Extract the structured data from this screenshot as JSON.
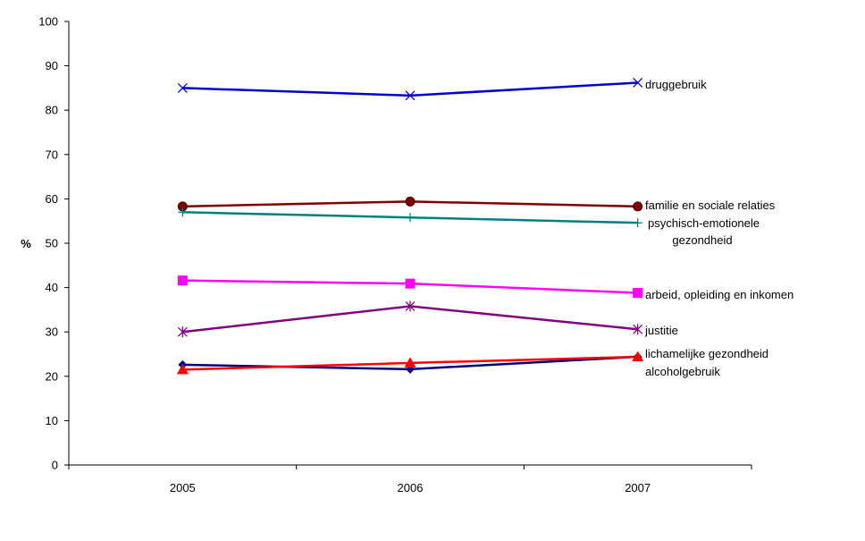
{
  "chart_data": {
    "type": "line",
    "title": "",
    "xlabel": "",
    "ylabel": "%",
    "ylim": [
      0,
      100
    ],
    "yticks": [
      "0",
      "10",
      "20",
      "30",
      "40",
      "50",
      "60",
      "70",
      "80",
      "90",
      "100"
    ],
    "x": [
      "2005",
      "2006",
      "2007"
    ],
    "grid": false,
    "legend": "inline-right",
    "series": [
      {
        "name": "druggebruik",
        "values": [
          85,
          83.3,
          86.2
        ],
        "color": "#0000cc",
        "marker": "x"
      },
      {
        "name": "familie en sociale relaties",
        "values": [
          58.3,
          59.4,
          58.3
        ],
        "color": "#800000",
        "marker": "circle"
      },
      {
        "name": "psychisch-emotionele gezondheid",
        "label_lines": [
          "psychisch-emotionele",
          "gezondheid"
        ],
        "values": [
          57,
          55.8,
          54.6
        ],
        "color": "#008080",
        "marker": "plus"
      },
      {
        "name": "arbeid, opleiding en inkomen",
        "values": [
          41.6,
          40.9,
          38.8
        ],
        "color": "#ff00ff",
        "marker": "square"
      },
      {
        "name": "justitie",
        "values": [
          30,
          35.8,
          30.6
        ],
        "color": "#800080",
        "marker": "star"
      },
      {
        "name": "lichamelijke gezondheid",
        "values": [
          22.6,
          21.6,
          24.4
        ],
        "color": "#000080",
        "marker": "diamond"
      },
      {
        "name": "alcoholgebruik",
        "values": [
          21.5,
          23,
          24.4
        ],
        "color": "#ff0000",
        "marker": "triangle"
      }
    ]
  }
}
